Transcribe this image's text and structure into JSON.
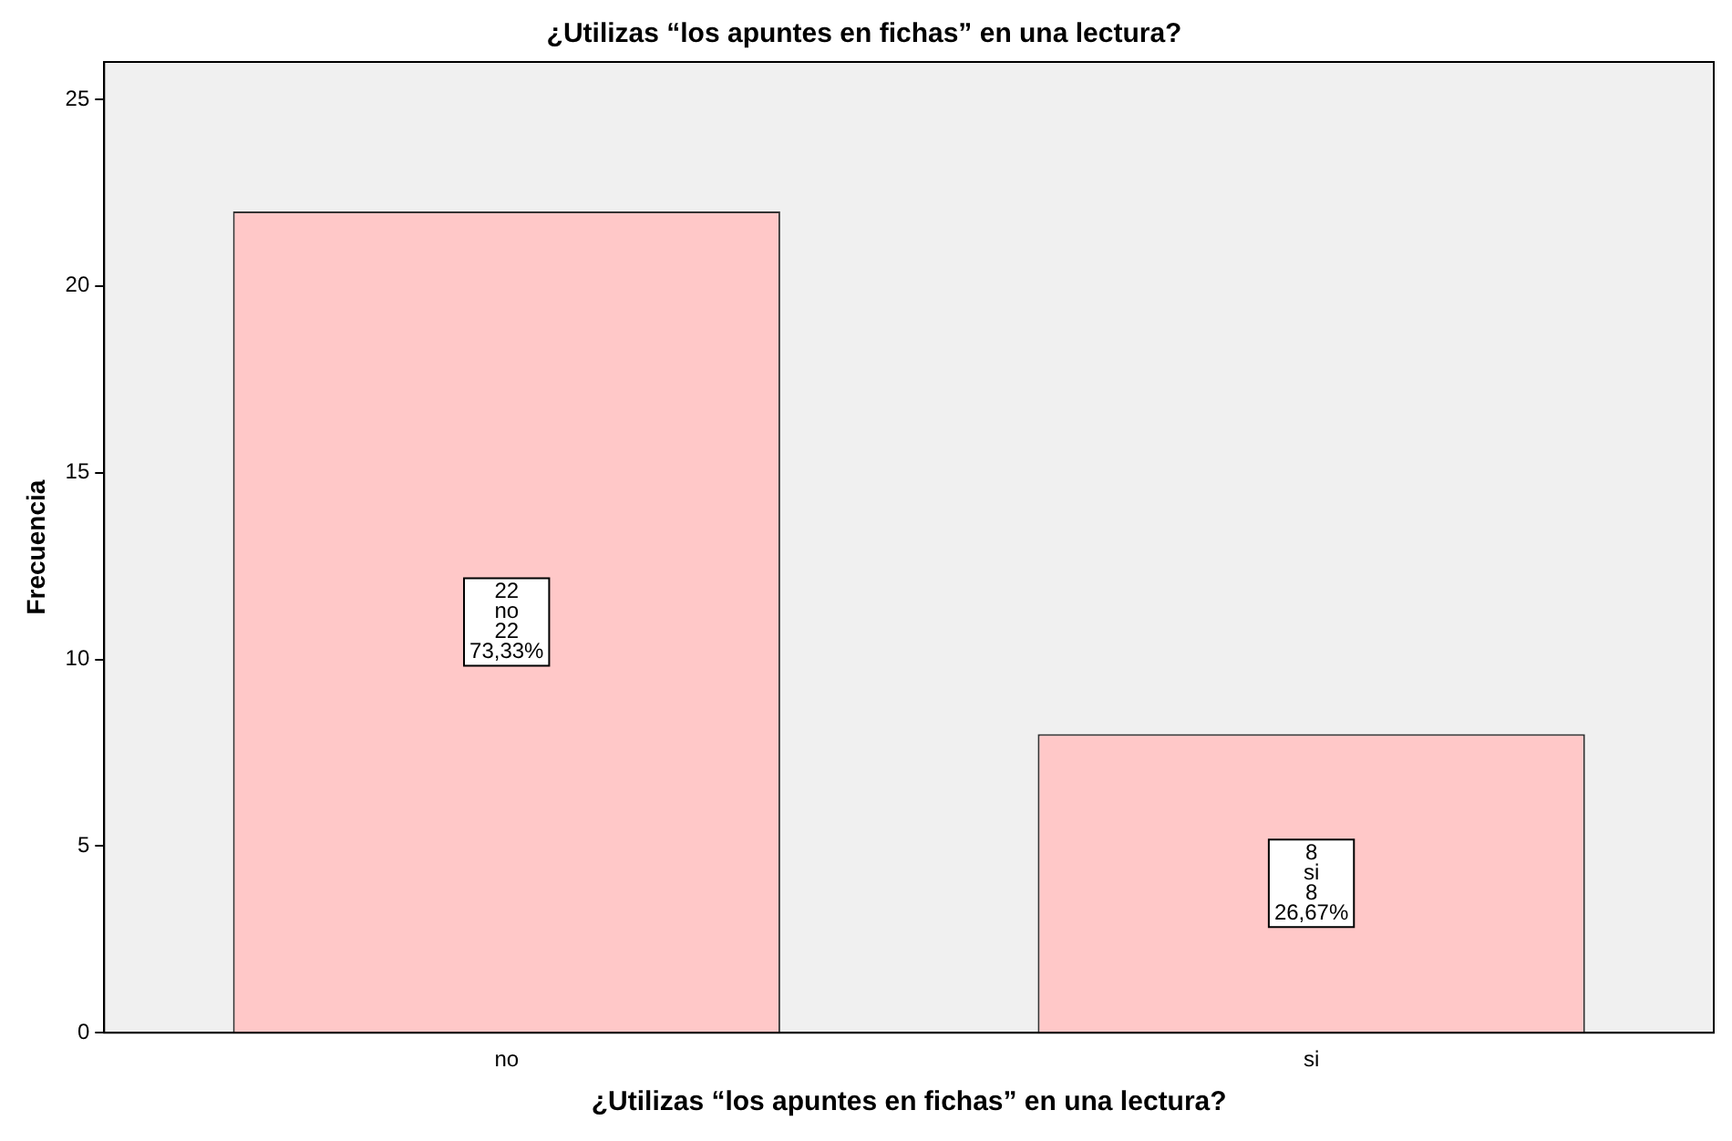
{
  "chart_data": {
    "type": "bar",
    "title": "¿Utilizas “los apuntes en fichas” en una lectura?",
    "xlabel": "¿Utilizas “los apuntes en fichas” en una lectura?",
    "ylabel": "Frecuencia",
    "categories": [
      "no",
      "si"
    ],
    "values": [
      22,
      8
    ],
    "color": "#ffc8c8",
    "value_labels": [
      "22\nno\n22\n73,33%",
      "8\nsi\n8\n26,67%"
    ],
    "ylim": [
      0,
      26
    ],
    "yticks": [
      0,
      5,
      10,
      15,
      20,
      25
    ],
    "grid": false,
    "legend": false
  }
}
